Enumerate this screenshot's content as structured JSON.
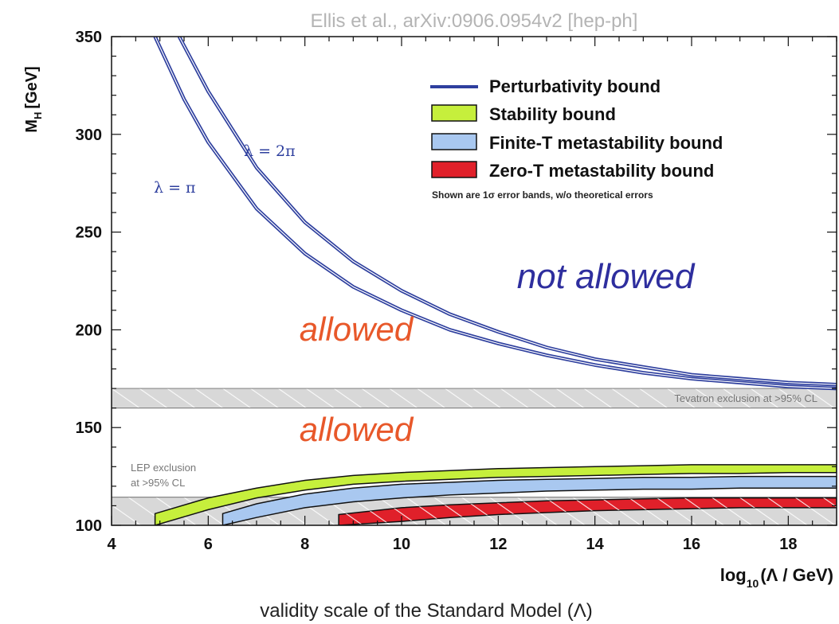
{
  "header": {
    "citation": "Ellis et al., arXiv:0906.0954v2 [hep-ph]"
  },
  "footer": {
    "caption": "validity scale of the Standard Model (Λ)"
  },
  "colors": {
    "perturbativity": "#2e3f9e",
    "stability": "#c6ef3c",
    "finite_t": "#a9c8f0",
    "zero_t": "#e0202a",
    "exclusion": "#d8d8d8",
    "region_allowed": "#e8582a",
    "region_not_allowed": "#2e2e9e"
  },
  "chart_data": {
    "type": "line",
    "ylabel_main": "M",
    "ylabel_sub": "H",
    "ylabel_unit": "[GeV]",
    "xlabel_main": "log",
    "xlabel_sub": "10",
    "xlabel_unit": "(Λ / GeV)",
    "xlim": [
      4,
      19
    ],
    "ylim": [
      100,
      350
    ],
    "xticks": [
      4,
      6,
      8,
      10,
      12,
      14,
      16,
      18
    ],
    "yticks": [
      100,
      150,
      200,
      250,
      300,
      350
    ],
    "series": [
      {
        "name": "λ = π",
        "x": [
          4.9,
          5.5,
          6,
          7,
          8,
          9,
          10,
          11,
          12,
          13,
          14,
          15,
          16,
          17,
          18,
          19
        ],
        "y": [
          350,
          318,
          296,
          262,
          239,
          222,
          210,
          200,
          193,
          187,
          182,
          178,
          175,
          173,
          171,
          170
        ]
      },
      {
        "name": "λ = 2π",
        "x": [
          5.4,
          6,
          7,
          8,
          9,
          10,
          11,
          12,
          13,
          14,
          15,
          16,
          17,
          18,
          19
        ],
        "y": [
          350,
          322,
          283,
          255,
          235,
          220,
          208,
          199,
          191,
          185,
          181,
          177,
          175,
          173,
          172
        ]
      }
    ],
    "bands": [
      {
        "name": "Stability bound",
        "x": [
          4.9,
          6,
          7,
          8,
          9,
          10,
          11,
          12,
          13,
          14,
          15,
          16,
          17,
          18,
          19
        ],
        "lower": [
          100,
          108,
          114,
          118,
          121,
          122.5,
          123.5,
          124.5,
          125,
          125.5,
          126,
          126.5,
          126.5,
          127,
          127
        ],
        "upper": [
          106,
          114,
          119,
          123,
          125.5,
          127,
          128,
          129,
          129.5,
          130,
          130.5,
          131,
          131,
          131,
          131
        ]
      },
      {
        "name": "Finite-T metastability bound",
        "x": [
          6.3,
          7,
          8,
          9,
          10,
          11,
          12,
          13,
          14,
          15,
          16,
          17,
          18,
          19
        ],
        "lower": [
          100,
          104,
          109,
          112,
          114,
          115.5,
          116.5,
          117.5,
          118,
          118.5,
          118.5,
          119,
          119,
          119
        ],
        "upper": [
          106,
          111,
          116,
          119,
          121,
          122,
          123,
          123.5,
          124,
          124.5,
          124.5,
          125,
          125,
          125
        ]
      },
      {
        "name": "Zero-T metastability bound",
        "x": [
          8.7,
          10,
          11,
          12,
          13,
          14,
          15,
          16,
          17,
          18,
          19
        ],
        "lower": [
          100,
          102,
          104,
          105.5,
          106.5,
          107.5,
          108,
          108.5,
          109,
          109,
          109
        ],
        "upper": [
          105.5,
          109,
          110.5,
          111.5,
          112.5,
          113,
          113.5,
          114,
          114,
          114,
          114
        ]
      }
    ],
    "exclusions": [
      {
        "label": "Tevatron exclusion at >95% CL",
        "y_range": [
          160,
          170
        ]
      },
      {
        "label_lines": [
          "LEP exclusion",
          "at >95% CL"
        ],
        "y_range": [
          100,
          114.4
        ]
      }
    ],
    "region_labels": {
      "not_allowed": "not  allowed",
      "allowed_upper": "allowed",
      "allowed_lower": "allowed"
    },
    "curve_labels": {
      "lambda_pi": "λ = π",
      "lambda_2pi": "λ = 2π"
    },
    "legend": {
      "position": "top-right",
      "entries": [
        "Perturbativity bound",
        "Stability bound",
        "Finite-T metastability bound",
        "Zero-T metastability bound"
      ],
      "note": "Shown are 1σ error bands, w/o theoretical errors"
    }
  }
}
